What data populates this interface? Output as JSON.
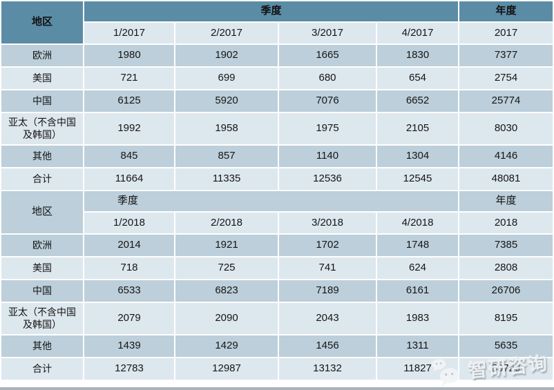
{
  "chart_data": {
    "type": "table",
    "description_visible_text_only": "",
    "sections": [
      {
        "region_header": "地区",
        "period_header": "季度",
        "annual_header": "年度",
        "column_headers": [
          "1/2017",
          "2/2017",
          "3/2017",
          "4/2017",
          "2017"
        ],
        "rows": [
          {
            "region": "欧洲",
            "values": [
              "1980",
              "1902",
              "1665",
              "1830",
              "7377"
            ]
          },
          {
            "region": "美国",
            "values": [
              "721",
              "699",
              "680",
              "654",
              "2754"
            ]
          },
          {
            "region": "中国",
            "values": [
              "6125",
              "5920",
              "7076",
              "6652",
              "25774"
            ]
          },
          {
            "region": "亚太（不含中国及韩国）",
            "values": [
              "1992",
              "1958",
              "1975",
              "2105",
              "8030"
            ]
          },
          {
            "region": "其他",
            "values": [
              "845",
              "857",
              "1140",
              "1304",
              "4146"
            ]
          },
          {
            "region": "合计",
            "values": [
              "11664",
              "11335",
              "12536",
              "12545",
              "48081"
            ]
          }
        ]
      },
      {
        "region_header": "地区",
        "period_header": "季度",
        "annual_header": "年度",
        "column_headers": [
          "1/2018",
          "2/2018",
          "3/2018",
          "4/2018",
          "2018"
        ],
        "rows": [
          {
            "region": "欧洲",
            "values": [
              "2014",
              "1921",
              "1702",
              "1748",
              "7385"
            ]
          },
          {
            "region": "美国",
            "values": [
              "718",
              "725",
              "741",
              "624",
              "2808"
            ]
          },
          {
            "region": "中国",
            "values": [
              "6533",
              "6823",
              "7189",
              "6161",
              "26706"
            ]
          },
          {
            "region": "亚太（不含中国及韩国）",
            "values": [
              "2079",
              "2090",
              "2043",
              "1983",
              "8195"
            ]
          },
          {
            "region": "其他",
            "values": [
              "1439",
              "1429",
              "1456",
              "1311",
              "5635"
            ]
          },
          {
            "region": "合计",
            "values": [
              "12783",
              "12987",
              "13132",
              "11827",
              "50729"
            ]
          }
        ]
      }
    ],
    "layout": {
      "tall_row_region_index": 3,
      "row_fill_pattern": [
        "med",
        "light"
      ],
      "section1_header_fill": "dark",
      "section2_header_fill": "med"
    }
  },
  "colors": {
    "header_dark_teal": "#5b8ca6",
    "row_medium_blue": "#bccfda",
    "row_light_blue": "#dde7ee",
    "grid_white": "#ffffff",
    "bottom_bar_gray": "#aab3b8",
    "text_black": "#151515"
  },
  "watermark": {
    "brand_text": "智研咨询",
    "icon": "wechat-icon"
  }
}
